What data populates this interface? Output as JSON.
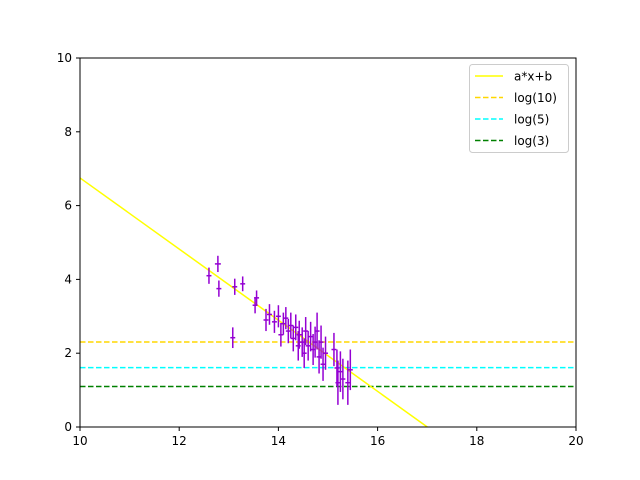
{
  "chart_data": {
    "type": "scatter",
    "title": "",
    "xlabel": "",
    "ylabel": "",
    "xlim": [
      10,
      20
    ],
    "ylim": [
      0,
      10
    ],
    "xticks": [
      10,
      12,
      14,
      16,
      18,
      20
    ],
    "yticks": [
      0,
      2,
      4,
      6,
      8,
      10
    ],
    "grid": false,
    "legend_position": "top-right",
    "fit_line": {
      "name": "a*x+b",
      "color": "#ffff00",
      "slope": -0.964,
      "intercept": 16.39
    },
    "hlines": [
      {
        "name": "log(10)",
        "y": 2.303,
        "color": "#ffd700"
      },
      {
        "name": "log(5)",
        "y": 1.609,
        "color": "#00ffff"
      },
      {
        "name": "log(3)",
        "y": 1.099,
        "color": "#008000"
      }
    ],
    "points": {
      "color": "#9400d3",
      "data": [
        {
          "x": 12.6,
          "y": 4.1,
          "xerr": 0.05,
          "yerr": 0.22
        },
        {
          "x": 12.78,
          "y": 4.42,
          "xerr": 0.06,
          "yerr": 0.22
        },
        {
          "x": 12.8,
          "y": 3.75,
          "xerr": 0.05,
          "yerr": 0.22
        },
        {
          "x": 13.08,
          "y": 2.42,
          "xerr": 0.05,
          "yerr": 0.28
        },
        {
          "x": 13.12,
          "y": 3.8,
          "xerr": 0.05,
          "yerr": 0.22
        },
        {
          "x": 13.28,
          "y": 3.88,
          "xerr": 0.05,
          "yerr": 0.2
        },
        {
          "x": 13.53,
          "y": 3.3,
          "xerr": 0.05,
          "yerr": 0.22
        },
        {
          "x": 13.56,
          "y": 3.5,
          "xerr": 0.05,
          "yerr": 0.2
        },
        {
          "x": 13.75,
          "y": 2.9,
          "xerr": 0.05,
          "yerr": 0.3
        },
        {
          "x": 13.82,
          "y": 3.05,
          "xerr": 0.05,
          "yerr": 0.28
        },
        {
          "x": 13.92,
          "y": 2.85,
          "xerr": 0.05,
          "yerr": 0.3
        },
        {
          "x": 14.0,
          "y": 3.0,
          "xerr": 0.05,
          "yerr": 0.3
        },
        {
          "x": 14.05,
          "y": 2.5,
          "xerr": 0.05,
          "yerr": 0.32
        },
        {
          "x": 14.1,
          "y": 2.8,
          "xerr": 0.05,
          "yerr": 0.3
        },
        {
          "x": 14.15,
          "y": 2.95,
          "xerr": 0.05,
          "yerr": 0.3
        },
        {
          "x": 14.2,
          "y": 2.6,
          "xerr": 0.05,
          "yerr": 0.33
        },
        {
          "x": 14.25,
          "y": 2.75,
          "xerr": 0.05,
          "yerr": 0.35
        },
        {
          "x": 14.3,
          "y": 2.4,
          "xerr": 0.05,
          "yerr": 0.35
        },
        {
          "x": 14.35,
          "y": 2.7,
          "xerr": 0.05,
          "yerr": 0.35
        },
        {
          "x": 14.4,
          "y": 2.2,
          "xerr": 0.05,
          "yerr": 0.4
        },
        {
          "x": 14.42,
          "y": 2.5,
          "xerr": 0.05,
          "yerr": 0.38
        },
        {
          "x": 14.48,
          "y": 2.3,
          "xerr": 0.05,
          "yerr": 0.4
        },
        {
          "x": 14.52,
          "y": 2.0,
          "xerr": 0.05,
          "yerr": 0.4
        },
        {
          "x": 14.55,
          "y": 2.6,
          "xerr": 0.05,
          "yerr": 0.38
        },
        {
          "x": 14.6,
          "y": 2.2,
          "xerr": 0.05,
          "yerr": 0.4
        },
        {
          "x": 14.65,
          "y": 2.45,
          "xerr": 0.05,
          "yerr": 0.4
        },
        {
          "x": 14.7,
          "y": 2.1,
          "xerr": 0.05,
          "yerr": 0.42
        },
        {
          "x": 14.74,
          "y": 2.3,
          "xerr": 0.05,
          "yerr": 0.42
        },
        {
          "x": 14.78,
          "y": 2.6,
          "xerr": 0.05,
          "yerr": 0.5
        },
        {
          "x": 14.82,
          "y": 1.9,
          "xerr": 0.05,
          "yerr": 0.45
        },
        {
          "x": 14.86,
          "y": 2.3,
          "xerr": 0.05,
          "yerr": 0.45
        },
        {
          "x": 14.9,
          "y": 1.7,
          "xerr": 0.05,
          "yerr": 0.45
        },
        {
          "x": 14.95,
          "y": 2.0,
          "xerr": 0.05,
          "yerr": 0.45
        },
        {
          "x": 15.12,
          "y": 2.1,
          "xerr": 0.05,
          "yerr": 0.45
        },
        {
          "x": 15.18,
          "y": 1.6,
          "xerr": 0.05,
          "yerr": 0.5
        },
        {
          "x": 15.2,
          "y": 1.2,
          "xerr": 0.05,
          "yerr": 0.6
        },
        {
          "x": 15.25,
          "y": 1.5,
          "xerr": 0.05,
          "yerr": 0.55
        },
        {
          "x": 15.3,
          "y": 1.3,
          "xerr": 0.05,
          "yerr": 0.55
        },
        {
          "x": 15.4,
          "y": 1.2,
          "xerr": 0.05,
          "yerr": 0.6
        },
        {
          "x": 15.45,
          "y": 1.55,
          "xerr": 0.05,
          "yerr": 0.55
        }
      ]
    }
  }
}
